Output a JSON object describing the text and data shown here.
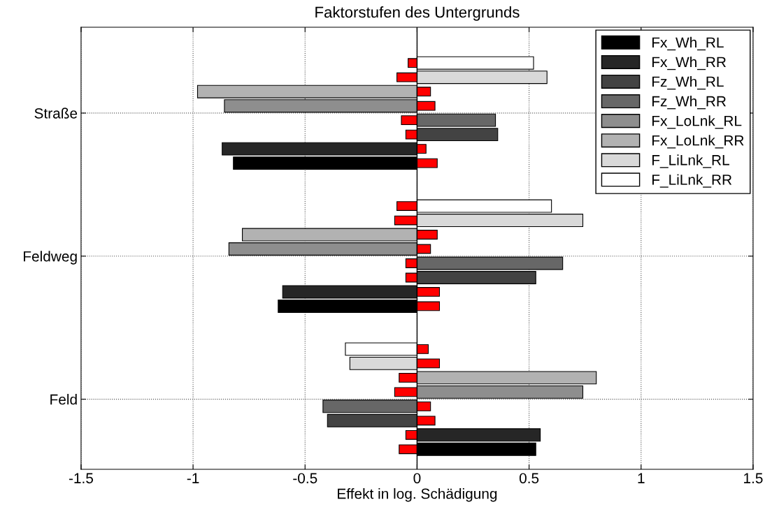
{
  "chart_data": {
    "type": "bar",
    "orientation": "horizontal",
    "title": "Faktorstufen des Untergrunds",
    "xlabel": "Effekt in log. Schädigung",
    "categories": [
      "Straße",
      "Feldweg",
      "Feld"
    ],
    "series": [
      {
        "name": "F_LiLnk_RR",
        "color": "#ffffff",
        "values": [
          0.52,
          0.6,
          -0.32
        ]
      },
      {
        "color": "#ff0000",
        "values": [
          -0.04,
          -0.09,
          0.05
        ]
      },
      {
        "name": "F_LiLnk_RL",
        "color": "#d9d9d9",
        "values": [
          0.58,
          0.74,
          -0.3
        ]
      },
      {
        "color": "#ff0000",
        "values": [
          -0.09,
          -0.1,
          0.1
        ]
      },
      {
        "name": "Fx_LoLnk_RR",
        "color": "#b2b2b2",
        "values": [
          -0.98,
          -0.78,
          0.8
        ]
      },
      {
        "color": "#ff0000",
        "values": [
          0.06,
          0.09,
          -0.08
        ]
      },
      {
        "name": "Fx_LoLnk_RL",
        "color": "#8e8e8e",
        "values": [
          -0.86,
          -0.84,
          0.74
        ]
      },
      {
        "color": "#ff0000",
        "values": [
          0.08,
          0.06,
          -0.1
        ]
      },
      {
        "name": "Fz_Wh_RR",
        "color": "#676767",
        "values": [
          0.35,
          0.65,
          -0.42
        ]
      },
      {
        "color": "#ff0000",
        "values": [
          -0.07,
          -0.05,
          0.06
        ]
      },
      {
        "name": "Fz_Wh_RL",
        "color": "#434343",
        "values": [
          0.36,
          0.53,
          -0.4
        ]
      },
      {
        "color": "#ff0000",
        "values": [
          -0.05,
          -0.05,
          0.08
        ]
      },
      {
        "name": "Fx_Wh_RR",
        "color": "#262626",
        "values": [
          -0.87,
          -0.6,
          0.55
        ]
      },
      {
        "color": "#ff0000",
        "values": [
          0.04,
          0.1,
          -0.05
        ]
      },
      {
        "name": "Fx_Wh_RL",
        "color": "#000000",
        "values": [
          -0.82,
          -0.62,
          0.53
        ]
      },
      {
        "color": "#ff0000",
        "values": [
          0.09,
          0.1,
          -0.08
        ]
      }
    ],
    "xlim": [
      -1.5,
      1.5
    ],
    "xticks": [
      -1.5,
      -1,
      -0.5,
      0,
      0.5,
      1,
      1.5
    ],
    "grid": true,
    "line_style": "dotted",
    "legend": "top right"
  }
}
